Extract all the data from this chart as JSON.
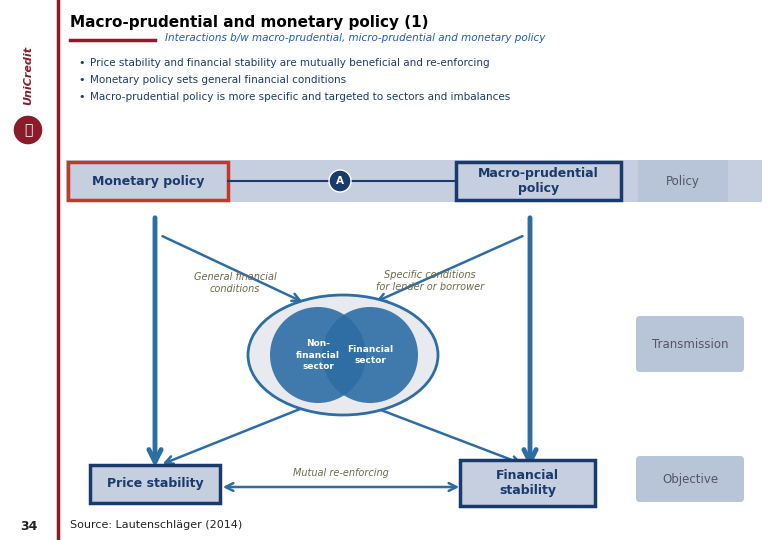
{
  "title": "Macro-prudential and monetary policy (1)",
  "subtitle": "Interactions b/w macro-prudential, micro-prudential and monetary policy",
  "bullets": [
    "Price stability and financial stability are mutually beneficial and re-enforcing",
    "Monetary policy sets general financial conditions",
    "Macro-prudential policy is more specific and targeted to sectors and imbalances"
  ],
  "policy_bar_bg": "#c5cfe0",
  "monetary_box_text": "Monetary policy",
  "monetary_box_border": "#c0392b",
  "macro_box_text": "Macro-prudential\npolicy",
  "macro_box_border": "#1a3a6b",
  "policy_label": "Policy",
  "transmission_label": "Transmission",
  "objective_label": "Objective",
  "label_box_bg": "#b8c4d8",
  "label_box_text_color": "#555566",
  "node_circle_color": "#1a3a6b",
  "circle_node_label": "A",
  "outer_ellipse_bg": "#e8eaf0",
  "outer_ellipse_border": "#2e6da4",
  "inner_circle_left_text": "Non-\nfinancial\nsector",
  "inner_circle_right_text": "Financial\nsector",
  "inner_circle_color": "#2e6da4",
  "arrow_color": "#2e6da4",
  "general_financial_label": "General financial\nconditions",
  "specific_conditions_label": "Specific conditions\nfor lender or borrower",
  "price_stability_text": "Price stability",
  "financial_stability_text": "Financial\nstability",
  "mutual_label": "Mutual re-enforcing",
  "bottom_box_border": "#1a3a6b",
  "bottom_box_bg": "#c5cfe0",
  "source_text": "Source: Lautenschläger (2014)",
  "page_number": "34",
  "bg_color": "#ffffff",
  "title_color": "#000000",
  "subtitle_color": "#1a5eb8",
  "bullet_color": "#1a3a6b",
  "sidebar_color": "#8b1a2a",
  "conditions_text_color": "#6b6b4a"
}
